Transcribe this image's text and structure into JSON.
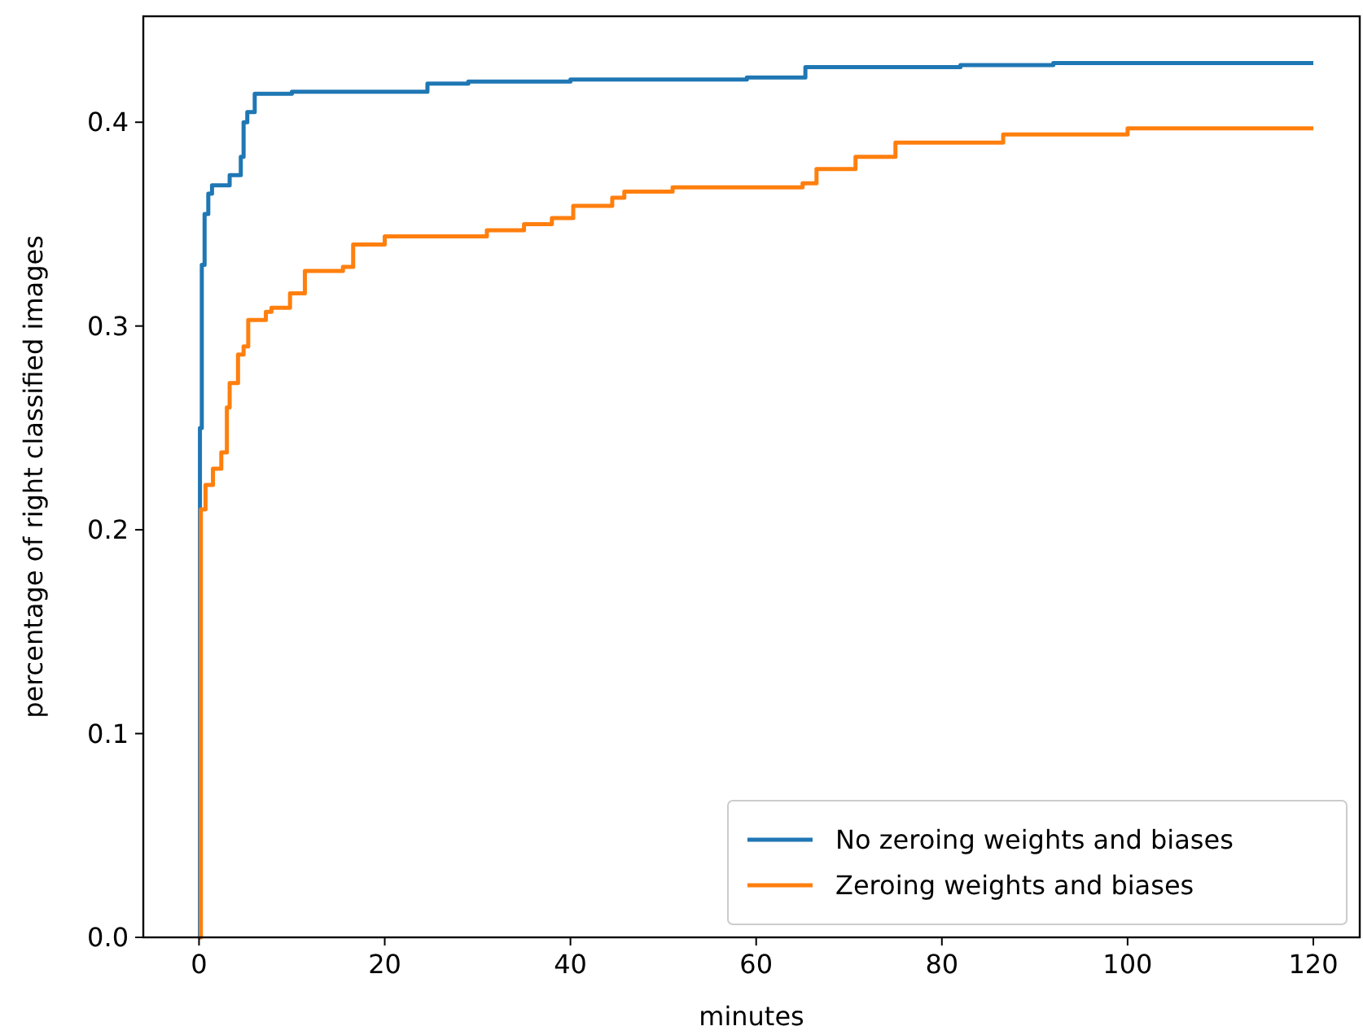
{
  "chart_data": {
    "type": "step",
    "xlabel": "minutes",
    "ylabel": "percentage of right classified images",
    "xlim": [
      -6,
      125
    ],
    "xticks": [
      0,
      20,
      40,
      60,
      80,
      100,
      120
    ],
    "ylim": [
      0,
      0.452
    ],
    "yticks": [
      {
        "value": 0,
        "label": "0.0"
      },
      0.1,
      0.2,
      0.3,
      0.4
    ],
    "legend": "bottom right",
    "grid": false,
    "line_style": "solid",
    "marker": "none",
    "series": [
      {
        "name": "No zeroing weights and biases",
        "color": "#1f77b4",
        "x": [
          0,
          0.1,
          0.3,
          0.6,
          1.0,
          1.4,
          3.3,
          4.5,
          4.8,
          5.2,
          6.0,
          10,
          24.6,
          29,
          40,
          59,
          65.3,
          82,
          92,
          120
        ],
        "values": [
          0,
          0.25,
          0.33,
          0.355,
          0.365,
          0.369,
          0.374,
          0.383,
          0.4,
          0.405,
          0.414,
          0.415,
          0.419,
          0.42,
          0.421,
          0.422,
          0.427,
          0.428,
          0.429,
          0.429
        ]
      },
      {
        "name": "Zeroing weights and biases",
        "color": "#ff7f0e",
        "x": [
          0,
          0.2,
          0.7,
          1.5,
          2.4,
          3.0,
          3.3,
          4.2,
          4.8,
          5.3,
          7.2,
          7.8,
          9.8,
          11.4,
          15.5,
          16.6,
          20,
          31,
          35,
          38,
          40.3,
          44.5,
          45.8,
          51,
          65,
          66.5,
          70.7,
          75,
          86.6,
          100,
          120
        ],
        "values": [
          0,
          0.21,
          0.222,
          0.23,
          0.238,
          0.26,
          0.272,
          0.286,
          0.29,
          0.303,
          0.307,
          0.309,
          0.316,
          0.327,
          0.329,
          0.34,
          0.344,
          0.347,
          0.35,
          0.353,
          0.359,
          0.363,
          0.366,
          0.368,
          0.37,
          0.377,
          0.383,
          0.39,
          0.394,
          0.397,
          0.397
        ]
      }
    ]
  }
}
